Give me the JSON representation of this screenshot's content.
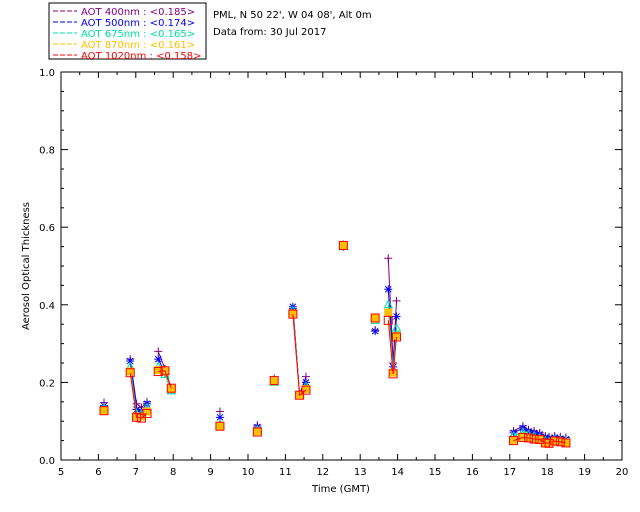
{
  "chart_data": {
    "type": "line",
    "header": {
      "location": "PML, N 50 22', W 04 08', Alt 0m",
      "date": "Data from: 30 Jul 2017"
    },
    "xlabel": "Time (GMT)",
    "ylabel": "Aerosol Optical Thickness",
    "xlim": [
      5,
      20
    ],
    "ylim": [
      0,
      1
    ],
    "x_ticks": [
      5,
      6,
      7,
      8,
      9,
      10,
      11,
      12,
      13,
      14,
      15,
      16,
      17,
      18,
      19,
      20
    ],
    "y_ticks": [
      0.0,
      0.2,
      0.4,
      0.6,
      0.8,
      1.0
    ],
    "x_tick_labels": [
      "5",
      "6",
      "7",
      "8",
      "9",
      "10",
      "11",
      "12",
      "13",
      "14",
      "15",
      "16",
      "17",
      "18",
      "19",
      "20"
    ],
    "y_tick_labels": [
      "0.0",
      "0.2",
      "0.4",
      "0.6",
      "0.8",
      "1.0"
    ],
    "legend_position": "top-left-outside",
    "grid": false,
    "segments": [
      [
        6.15
      ],
      [
        6.85,
        7.02,
        7.15,
        7.3
      ],
      [
        7.6,
        7.78,
        7.95
      ],
      [
        9.25
      ],
      [
        10.25
      ],
      [
        10.7
      ],
      [
        11.2,
        11.38,
        11.55
      ],
      [
        12.55
      ],
      [
        13.4
      ],
      [
        13.75,
        13.88,
        13.97
      ],
      [
        17.1,
        17.35,
        17.5,
        17.65,
        17.8,
        17.95,
        18.05,
        18.2,
        18.35,
        18.5
      ]
    ],
    "series": [
      {
        "name": "AOT  400nm : <0.185>",
        "color": "#800080",
        "marker": "plus",
        "values": [
          [
            0.148
          ],
          [
            0.26,
            0.145,
            0.135,
            0.15
          ],
          [
            0.28,
            0.235,
            0.185
          ],
          [
            0.125
          ],
          [
            0.09
          ],
          [
            0.21
          ],
          [
            0.39,
            0.17,
            0.215
          ],
          [
            0.555
          ],
          [
            0.335
          ],
          [
            0.52,
            0.25,
            0.41
          ],
          [
            0.075,
            0.088,
            0.078,
            0.075,
            0.07,
            0.062,
            0.06,
            0.062,
            0.06,
            0.058
          ]
        ]
      },
      {
        "name": "AOT  500nm : <0.174>",
        "color": "#0000ff",
        "marker": "star",
        "values": [
          [
            0.14
          ],
          [
            0.255,
            0.13,
            0.125,
            0.145
          ],
          [
            0.26,
            0.225,
            0.18
          ],
          [
            0.11
          ],
          [
            0.085
          ],
          [
            0.205
          ],
          [
            0.395,
            0.17,
            0.2
          ],
          [
            0.55
          ],
          [
            0.332
          ],
          [
            0.44,
            0.24,
            0.37
          ],
          [
            0.07,
            0.082,
            0.074,
            0.07,
            0.066,
            0.058,
            0.055,
            0.058,
            0.055,
            0.054
          ]
        ]
      },
      {
        "name": "AOT  675nm : <0.165>",
        "color": "#00e0a0",
        "marker": "triangle",
        "values": [
          [
            0.133
          ],
          [
            0.24,
            0.12,
            0.118,
            0.135
          ],
          [
            0.24,
            0.22,
            0.178
          ],
          [
            0.092
          ],
          [
            0.078
          ],
          [
            0.2
          ],
          [
            0.385,
            0.168,
            0.19
          ],
          [
            0.55
          ],
          [
            0.36
          ],
          [
            0.4,
            0.23,
            0.34
          ],
          [
            0.062,
            0.072,
            0.066,
            0.062,
            0.058,
            0.05,
            0.048,
            0.052,
            0.05,
            0.049
          ]
        ]
      },
      {
        "name": "AOT  870nm : <0.161>",
        "color": "#ffc000",
        "marker": "diamond",
        "values": [
          [
            0.128
          ],
          [
            0.228,
            0.112,
            0.112,
            0.125
          ],
          [
            0.232,
            0.228,
            0.183
          ],
          [
            0.088
          ],
          [
            0.074
          ],
          [
            0.203
          ],
          [
            0.378,
            0.168,
            0.183
          ],
          [
            0.552
          ],
          [
            0.365
          ],
          [
            0.38,
            0.225,
            0.32
          ],
          [
            0.052,
            0.06,
            0.058,
            0.055,
            0.054,
            0.045,
            0.045,
            0.05,
            0.048,
            0.045
          ]
        ]
      },
      {
        "name": "AOT 1020nm : <0.158>",
        "color": "#ff0000",
        "marker": "square",
        "values": [
          [
            0.127
          ],
          [
            0.225,
            0.11,
            0.108,
            0.12
          ],
          [
            0.228,
            0.23,
            0.185
          ],
          [
            0.087
          ],
          [
            0.072
          ],
          [
            0.205
          ],
          [
            0.376,
            0.167,
            0.18
          ],
          [
            0.553
          ],
          [
            0.366
          ],
          [
            0.36,
            0.222,
            0.317
          ],
          [
            0.05,
            0.058,
            0.057,
            0.054,
            0.053,
            0.044,
            0.043,
            0.049,
            0.047,
            0.044
          ]
        ]
      }
    ]
  }
}
